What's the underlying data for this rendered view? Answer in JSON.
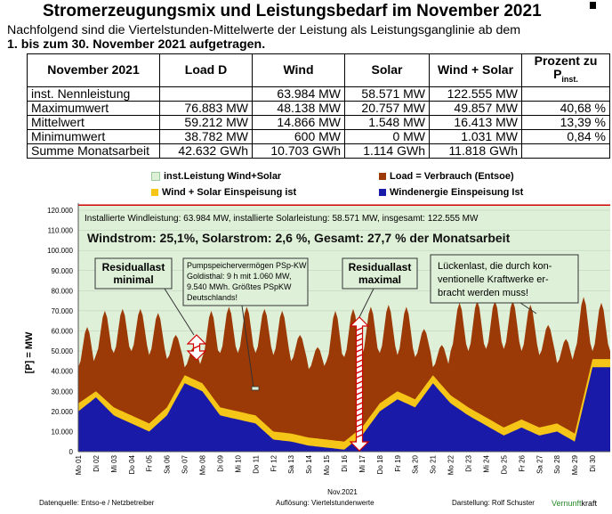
{
  "header": {
    "title": "Stromerzeugungsmix und Leistungsbedarf im November 2021",
    "intro_line1": "Nachfolgend sind die Viertelstunden-Mittelwerte der Leistung als Leistungsganglinie ab dem",
    "intro_line2": "1. bis zum 30. November 2021 aufgetragen."
  },
  "table": {
    "headers": [
      "November 2021",
      "Load D",
      "Wind",
      "Solar",
      "Wind + Solar",
      "Prozent zu",
      "P",
      "inst."
    ],
    "rows": [
      [
        "inst. Nennleistung",
        "",
        "63.984 MW",
        "58.571 MW",
        "122.555 MW",
        ""
      ],
      [
        "Maximumwert",
        "76.883 MW",
        "48.138 MW",
        "20.757 MW",
        "49.857 MW",
        "40,68 %"
      ],
      [
        "Mittelwert",
        "59.212 MW",
        "14.866 MW",
        "1.548 MW",
        "16.413 MW",
        "13,39 %"
      ],
      [
        "Minimumwert",
        "38.782 MW",
        "600 MW",
        "0 MW",
        "1.031 MW",
        "0,84 %"
      ],
      [
        "Summe Monatsarbeit",
        "42.632 GWh",
        "10.703 GWh",
        "1.114 GWh",
        "11.818 GWh",
        ""
      ]
    ]
  },
  "legend": {
    "installed": "inst.Leistung Wind+Solar",
    "load": "Load = Verbrauch (Entsoe)",
    "windsolar": "Wind + Solar Einspeisung ist",
    "wind": "Windenergie Einspeisung Ist",
    "colors": {
      "installed": "#dff0d8",
      "load": "#9b3a06",
      "windsolar": "#f5c518",
      "wind": "#1a1aa8",
      "line": "#d00000"
    }
  },
  "annotations": {
    "installed_text": "Installierte Windleistung: 63.984 MW, installierte Solarleistung: 58.571 MW, insgesamt: 122.555 MW",
    "share_text": "Windstrom: 25,1%, Solarstrom: 2,6 %, Gesamt: 27,7 % der Monatsarbeit",
    "residual_min": [
      "Residuallast",
      "minimal"
    ],
    "pumped": [
      "Pumpspeichervermögen PSp-KW",
      "Goldisthal: 9 h mit 1.060 MW,",
      "9.540 MWh. Größtes PSpKW",
      "Deutschlands!"
    ],
    "residual_max": [
      "Residuallast",
      "maximal"
    ],
    "gap": [
      "Lückenlast, die durch kon-",
      "ventionelle Kraftwerke er-",
      "bracht werden muss!"
    ]
  },
  "chart_data": {
    "type": "area",
    "ylabel": "[P] = MW",
    "xlabel": "Nov.2021",
    "ylim": [
      0,
      120000
    ],
    "yticks": [
      "0",
      "10.000",
      "20.000",
      "30.000",
      "40.000",
      "50.000",
      "60.000",
      "70.000",
      "80.000",
      "90.000",
      "100.000",
      "110.000",
      "120.000"
    ],
    "categories": [
      "Mo 01",
      "Di 02",
      "Mi 03",
      "Do 04",
      "Fr 05",
      "Sa 06",
      "So 07",
      "Mo 08",
      "Di 09",
      "Mi 10",
      "Do 11",
      "Fr 12",
      "Sa 13",
      "So 14",
      "Mo 15",
      "Di 16",
      "Mi 17",
      "Do 18",
      "Fr 19",
      "Sa 20",
      "So 21",
      "Mo 22",
      "Di 23",
      "Mi 24",
      "Do 25",
      "Fr 26",
      "Sa 27",
      "So 28",
      "Mo 29",
      "Di 30"
    ],
    "installed_capacity": 122555,
    "series": [
      {
        "name": "Load = Verbrauch (Entsoe)",
        "peak_values": [
          62000,
          70000,
          71000,
          71000,
          69000,
          58000,
          52000,
          70000,
          72000,
          72000,
          71000,
          70000,
          58000,
          52000,
          70000,
          71000,
          72000,
          73000,
          72000,
          61000,
          53000,
          74000,
          75000,
          75000,
          75000,
          73000,
          63000,
          56000,
          76883,
          74000
        ],
        "trough_values": [
          42000,
          48000,
          49000,
          50000,
          48000,
          46000,
          42000,
          47000,
          49000,
          49000,
          49000,
          48000,
          45000,
          41000,
          45000,
          47000,
          48000,
          49000,
          48000,
          47000,
          42000,
          50000,
          50000,
          51000,
          51000,
          50000,
          48000,
          44000,
          50000,
          50000
        ]
      },
      {
        "name": "Windenergie Einspeisung Ist",
        "values": [
          20000,
          27000,
          18000,
          14000,
          10000,
          18000,
          34000,
          30000,
          18000,
          16000,
          14000,
          6000,
          5000,
          3000,
          2000,
          1000,
          8000,
          20000,
          26000,
          22000,
          34000,
          24000,
          18000,
          13000,
          8000,
          12000,
          8000,
          10000,
          5000,
          42000
        ]
      },
      {
        "name": "Wind + Solar Einspeisung ist",
        "values": [
          24000,
          30000,
          22000,
          18000,
          14000,
          22000,
          38000,
          34000,
          22000,
          20000,
          18000,
          10000,
          9000,
          7000,
          6000,
          5000,
          12000,
          24000,
          30000,
          26000,
          38000,
          28000,
          22000,
          17000,
          12000,
          16000,
          12000,
          14000,
          9000,
          46000
        ]
      }
    ]
  },
  "footer": {
    "source": "Datenquelle: Entso-e  / Netzbetreiber",
    "resolution": "Auflösung: Viertelstundenwerte",
    "author": "Darstellung:  Rolf Schuster",
    "brand_a": "Vernunft",
    "brand_b": "kraft"
  }
}
